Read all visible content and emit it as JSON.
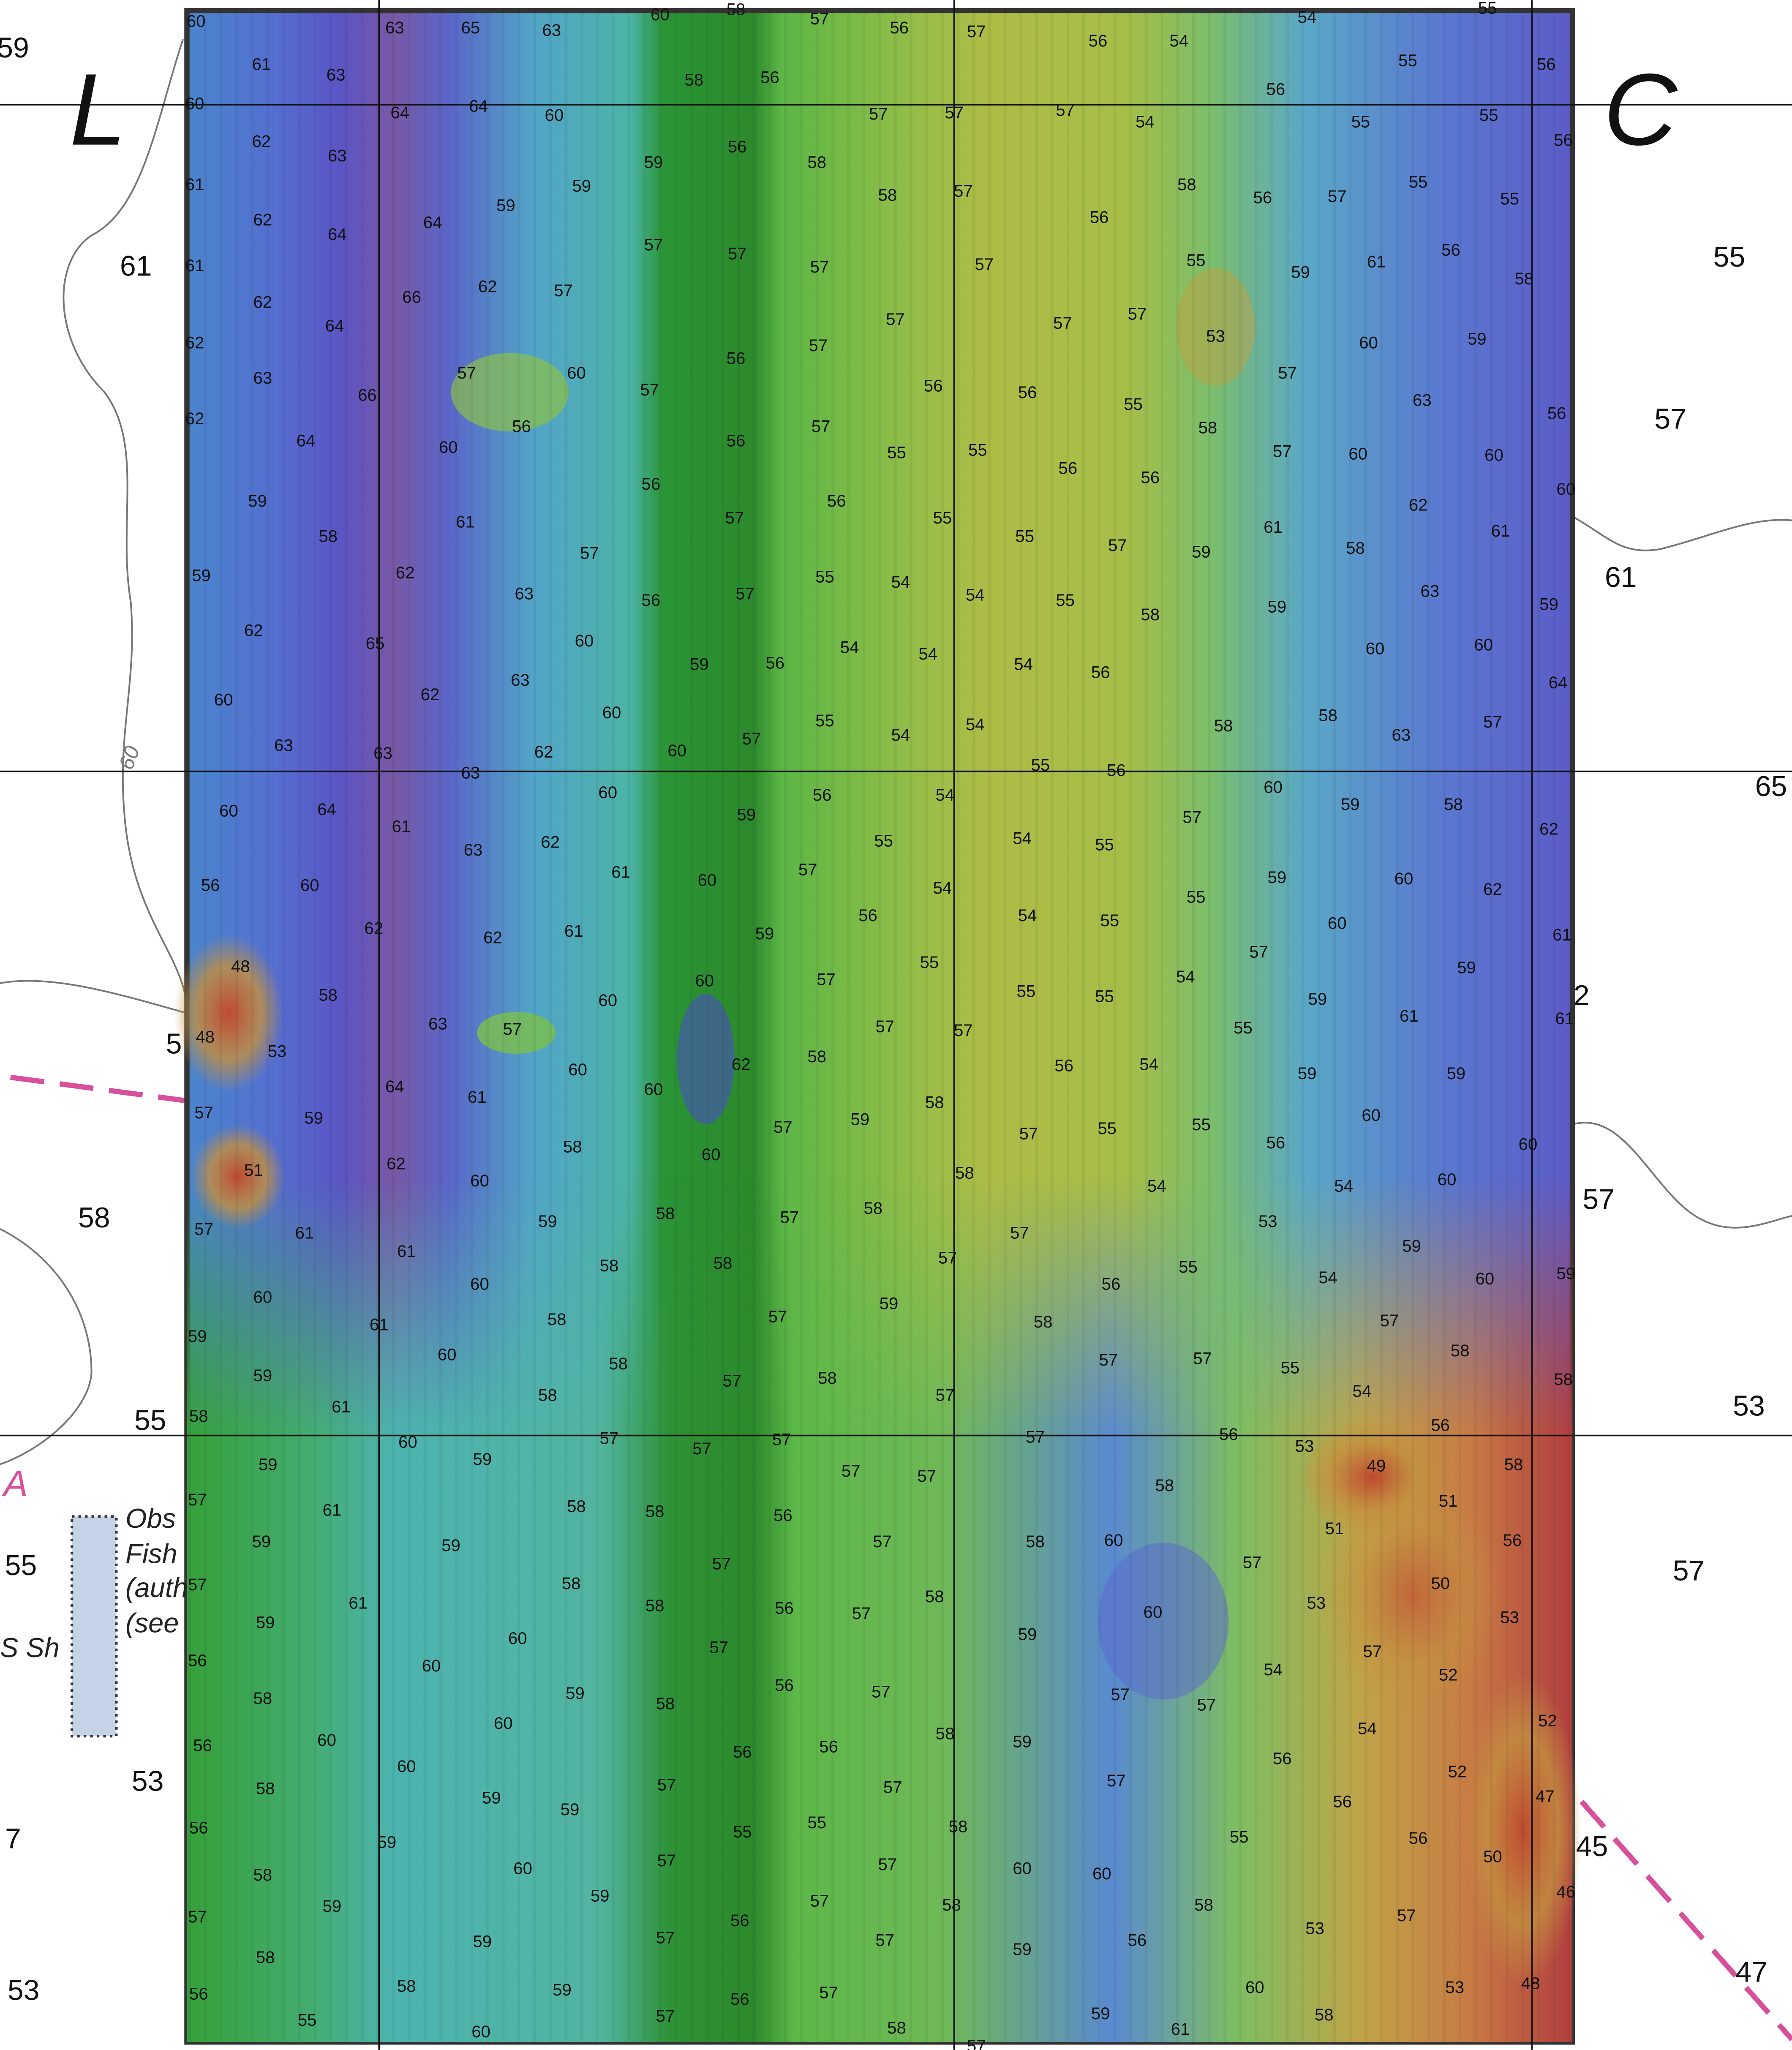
{
  "sheet_letters": [
    "L",
    "C"
  ],
  "margin_soundings": [
    59,
    61,
    55,
    57,
    61,
    65,
    58,
    57,
    55,
    53,
    55,
    57,
    53,
    45,
    47,
    53,
    5,
    2,
    7
  ],
  "contour_label": 60,
  "area_label": "A",
  "side_label": "S Sh",
  "note": [
    "Obs",
    "Fish",
    "(auth",
    "(see"
  ],
  "soundings": [
    [
      60,
      63,
      65,
      63,
      60,
      58,
      57,
      56,
      57,
      56,
      54,
      54,
      55
    ],
    [
      61,
      63,
      58,
      56,
      56,
      55,
      56
    ],
    [
      60,
      64,
      64,
      60,
      57,
      57,
      57,
      54,
      55,
      55,
      56
    ],
    [
      62,
      63,
      56,
      59,
      58,
      58,
      57,
      58,
      56,
      57,
      55,
      55
    ],
    [
      61,
      62,
      64,
      64,
      59,
      59,
      56
    ],
    [
      61,
      57,
      57,
      57,
      57,
      55,
      59,
      61,
      56,
      58
    ],
    [
      62,
      64,
      66,
      62,
      57,
      57,
      57,
      57,
      53,
      60,
      59
    ],
    [
      62,
      63,
      66,
      57,
      60,
      57,
      56,
      57,
      56,
      56,
      55,
      58,
      57,
      63,
      56
    ],
    [
      62,
      64,
      60,
      56,
      56,
      57,
      55,
      55,
      56,
      56,
      57,
      60,
      60,
      60
    ],
    [
      59,
      58,
      61,
      56,
      57,
      56,
      55,
      55,
      57,
      59,
      61,
      58,
      62,
      61
    ],
    [
      59,
      62,
      63,
      57,
      56,
      57,
      55,
      54,
      54,
      55,
      58,
      59,
      63,
      59
    ],
    [
      62,
      65,
      60,
      59,
      56,
      54,
      54,
      54,
      56,
      60,
      60,
      64
    ],
    [
      60,
      62,
      63,
      60,
      55,
      54,
      54,
      58,
      58,
      63,
      57
    ],
    [
      63,
      63,
      62,
      60,
      57,
      55,
      56,
      63
    ],
    [
      60,
      64,
      61,
      63,
      62,
      60,
      59,
      56,
      54,
      55,
      54,
      55,
      57,
      60,
      59,
      58,
      62
    ],
    [
      56,
      60,
      61,
      60,
      57,
      54,
      56,
      54,
      55,
      55,
      59,
      60,
      62
    ],
    [
      62,
      62,
      61,
      59,
      55,
      55,
      54,
      57,
      60,
      59,
      61
    ],
    [
      48,
      58,
      60,
      60,
      57,
      57,
      57,
      55,
      55,
      59,
      61,
      61
    ],
    [
      48,
      53,
      63,
      57,
      62,
      58,
      56,
      54,
      59,
      59
    ],
    [
      57,
      59,
      64,
      61,
      60,
      60,
      57,
      59,
      58,
      57,
      55,
      55,
      56,
      60,
      60
    ],
    [
      51,
      62,
      60,
      58,
      58,
      54,
      54,
      60
    ],
    [
      57,
      61,
      60,
      59,
      58,
      57,
      58,
      57,
      53,
      59,
      59
    ],
    [
      60,
      61,
      60,
      58,
      58,
      57,
      59,
      56,
      55,
      54,
      60
    ],
    [
      59,
      61,
      58,
      57,
      58,
      57,
      57,
      55,
      57,
      58
    ],
    [
      59,
      60,
      58,
      57,
      58,
      57,
      54,
      58
    ],
    [
      58,
      61,
      58,
      56
    ],
    [
      60,
      57,
      57,
      57,
      57,
      56,
      53,
      49,
      58
    ],
    [
      59,
      59,
      57,
      57,
      58
    ],
    [
      57,
      61,
      58,
      58,
      56,
      57,
      58,
      60,
      51,
      51,
      56
    ],
    [
      59,
      59,
      57,
      57,
      50
    ],
    [
      57,
      61,
      58,
      58,
      56,
      57,
      58,
      60,
      53,
      53
    ],
    [
      59,
      60,
      57,
      59,
      57
    ],
    [
      56,
      60,
      59,
      58,
      56,
      57,
      57,
      57,
      54,
      52
    ],
    [
      58,
      60,
      58,
      59,
      54,
      52
    ],
    [
      56,
      60,
      60,
      56,
      56,
      57,
      57,
      57,
      56,
      52
    ],
    [
      58,
      59,
      59,
      55,
      58,
      56,
      47
    ],
    [
      56,
      59,
      55,
      60,
      57,
      57,
      60,
      60,
      55,
      56,
      50
    ],
    [
      58,
      59,
      59,
      57,
      58,
      58,
      53,
      57,
      46
    ],
    [
      57,
      59,
      57,
      56,
      57,
      59,
      56
    ],
    [
      58,
      56,
      58,
      59,
      56,
      57,
      60,
      53,
      48
    ],
    [
      55,
      60,
      57,
      58,
      57,
      59,
      61,
      58
    ]
  ]
}
